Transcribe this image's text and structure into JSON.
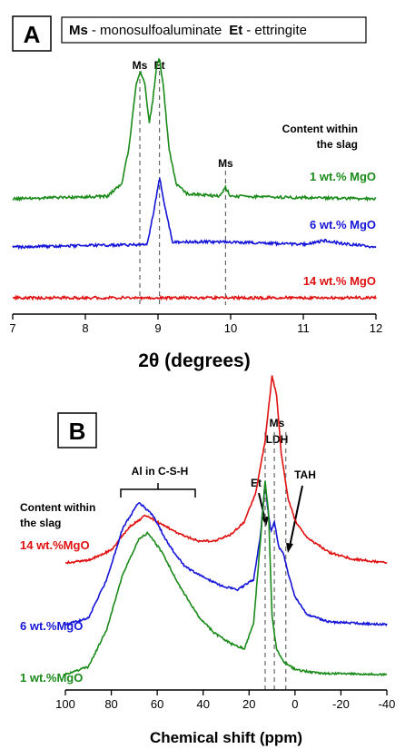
{
  "chart_data": [
    {
      "panel": "A",
      "type": "line",
      "legend": {
        "ms_abbr": "Ms",
        "ms_text": "- monosulfoaluminate",
        "et_abbr": "Et",
        "et_text": "- ettringite"
      },
      "content_note": [
        "Content within",
        "the slag"
      ],
      "xlabel": "2θ (degrees)",
      "xlim": [
        7,
        12
      ],
      "xticks": [
        "7",
        "8",
        "9",
        "10",
        "11",
        "12"
      ],
      "peak_markers": [
        {
          "label": "Ms",
          "x": 8.75
        },
        {
          "label": "Et",
          "x": 9.02
        },
        {
          "label": "Ms",
          "x": 9.93
        }
      ],
      "series": [
        {
          "name": "1 wt.% MgO",
          "color": "#1a8a1a",
          "baseline": 0,
          "points": [
            [
              7.0,
              0
            ],
            [
              8.3,
              0.02
            ],
            [
              8.5,
              0.12
            ],
            [
              8.6,
              0.4
            ],
            [
              8.7,
              0.9
            ],
            [
              8.76,
              1.0
            ],
            [
              8.82,
              0.9
            ],
            [
              8.88,
              0.6
            ],
            [
              8.93,
              0.78
            ],
            [
              8.98,
              1.05
            ],
            [
              9.02,
              1.1
            ],
            [
              9.07,
              0.9
            ],
            [
              9.15,
              0.4
            ],
            [
              9.25,
              0.12
            ],
            [
              9.4,
              0.04
            ],
            [
              9.85,
              0.02
            ],
            [
              9.93,
              0.09
            ],
            [
              10.0,
              0.02
            ],
            [
              12.0,
              0.0
            ]
          ]
        },
        {
          "name": "6 wt.% MgO",
          "color": "#1515d8",
          "baseline": 1,
          "points": [
            [
              7.0,
              0
            ],
            [
              8.85,
              0.02
            ],
            [
              8.95,
              0.3
            ],
            [
              9.02,
              0.55
            ],
            [
              9.1,
              0.3
            ],
            [
              9.2,
              0.04
            ],
            [
              9.93,
              0.04
            ],
            [
              11.0,
              0.02
            ],
            [
              11.3,
              0.05
            ],
            [
              11.5,
              0.03
            ],
            [
              12.0,
              0.0
            ]
          ]
        },
        {
          "name": "14 wt.% MgO",
          "color": "#e01010",
          "baseline": 2,
          "points": [
            [
              7.0,
              0
            ],
            [
              12.0,
              0
            ]
          ]
        }
      ]
    },
    {
      "panel": "B",
      "type": "line",
      "content_note": [
        "Content within",
        "the slag"
      ],
      "xlabel": "Chemical shift (ppm)",
      "xlim": [
        100,
        -40
      ],
      "xticks": [
        "100",
        "80",
        "60",
        "40",
        "20",
        "0",
        "-20",
        "-40"
      ],
      "annotations": {
        "al_csh": "Al in C-S-H",
        "ms": "Ms",
        "ldh": "LDH",
        "et": "Et",
        "tah": "TAH"
      },
      "peak_markers": [
        {
          "label": "Et",
          "x": 13
        },
        {
          "label": "Ms LDH",
          "x": 9
        },
        {
          "label": "TAH",
          "x": 4
        }
      ],
      "series": [
        {
          "name": "14 wt.%MgO",
          "color": "#e01010",
          "baseline": 2,
          "points": [
            [
              100,
              0
            ],
            [
              90,
              0.02
            ],
            [
              80,
              0.1
            ],
            [
              72,
              0.28
            ],
            [
              65,
              0.37
            ],
            [
              58,
              0.3
            ],
            [
              50,
              0.22
            ],
            [
              42,
              0.17
            ],
            [
              35,
              0.17
            ],
            [
              28,
              0.22
            ],
            [
              22,
              0.32
            ],
            [
              17,
              0.55
            ],
            [
              13,
              0.95
            ],
            [
              10,
              1.45
            ],
            [
              8,
              1.3
            ],
            [
              6,
              0.85
            ],
            [
              3,
              0.5
            ],
            [
              0,
              0.33
            ],
            [
              -5,
              0.2
            ],
            [
              -15,
              0.08
            ],
            [
              -25,
              0.03
            ],
            [
              -40,
              0
            ]
          ]
        },
        {
          "name": "6 wt.%MgO",
          "color": "#1515d8",
          "baseline": 1,
          "points": [
            [
              100,
              0
            ],
            [
              90,
              0.05
            ],
            [
              82,
              0.35
            ],
            [
              75,
              0.75
            ],
            [
              68,
              0.95
            ],
            [
              62,
              0.85
            ],
            [
              55,
              0.62
            ],
            [
              48,
              0.45
            ],
            [
              40,
              0.37
            ],
            [
              32,
              0.3
            ],
            [
              25,
              0.27
            ],
            [
              18,
              0.35
            ],
            [
              15,
              0.7
            ],
            [
              13,
              1.1
            ],
            [
              12,
              0.92
            ],
            [
              10.5,
              0.72
            ],
            [
              9,
              0.8
            ],
            [
              7,
              0.6
            ],
            [
              5,
              0.55
            ],
            [
              3,
              0.4
            ],
            [
              0,
              0.22
            ],
            [
              -5,
              0.08
            ],
            [
              -15,
              0.02
            ],
            [
              -40,
              0
            ]
          ]
        },
        {
          "name": "1 wt.%MgO",
          "color": "#1a8a1a",
          "baseline": 0,
          "points": [
            [
              100,
              0
            ],
            [
              90,
              0.06
            ],
            [
              82,
              0.35
            ],
            [
              75,
              0.78
            ],
            [
              68,
              1.05
            ],
            [
              64,
              1.1
            ],
            [
              58,
              0.95
            ],
            [
              50,
              0.68
            ],
            [
              42,
              0.45
            ],
            [
              35,
              0.32
            ],
            [
              28,
              0.24
            ],
            [
              22,
              0.2
            ],
            [
              18,
              0.4
            ],
            [
              15,
              1.05
            ],
            [
              13,
              1.5
            ],
            [
              11.5,
              1.25
            ],
            [
              10,
              0.45
            ],
            [
              8,
              0.2
            ],
            [
              5,
              0.1
            ],
            [
              0,
              0.04
            ],
            [
              -10,
              0.01
            ],
            [
              -40,
              0
            ]
          ]
        }
      ]
    }
  ]
}
